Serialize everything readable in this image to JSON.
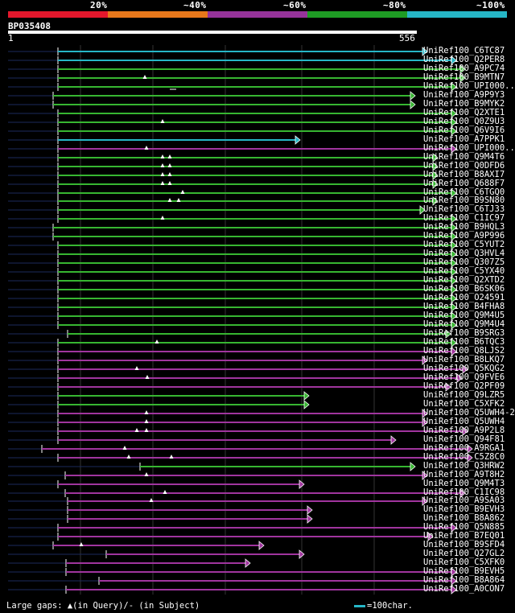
{
  "legend": {
    "segments": [
      {
        "label": "20%",
        "color": "#e3172c"
      },
      {
        "label": "~40%",
        "color": "#e8781b"
      },
      {
        "label": "~60%",
        "color": "#96339a"
      },
      {
        "label": "~80%",
        "color": "#1e9c24"
      },
      {
        "label": "~100%",
        "color": "#26b6c6"
      }
    ]
  },
  "query": {
    "id": "BP035408",
    "start_label": "1",
    "end_label": "556",
    "length": 556
  },
  "colors": {
    "cyan": "#26b6c6",
    "green": "#37b631",
    "purple": "#a0359e",
    "navy": "#1c2a5c",
    "grid": "#333333"
  },
  "hits": [
    {
      "label": "UniRef100_C6TC87",
      "c": "cyan",
      "qs": 72,
      "qe": 531,
      "ps": 10,
      "pe": 72
    },
    {
      "label": "UniRef100_Q2PER8",
      "c": "cyan",
      "qs": 72,
      "qe": 567,
      "ps": 10,
      "pe": 72
    },
    {
      "label": "UniRef100_A9PC74",
      "c": "green",
      "qs": 72,
      "qe": 578,
      "ps": 10,
      "pe": 72
    },
    {
      "label": "UniRef100_B9MTN7",
      "c": "green",
      "qs": 72,
      "qe": 578,
      "ps": 10,
      "pe": 72,
      "gq": [
        180
      ]
    },
    {
      "label": "UniRef100_UPI000..",
      "c": "green",
      "qs": 72,
      "qe": 567,
      "ps": 10,
      "pe": 72,
      "gs": [
        215
      ]
    },
    {
      "label": "UniRef100_A9P9Y3",
      "c": "green",
      "qs": 66,
      "qe": 516,
      "ps": 10,
      "pe": 66
    },
    {
      "label": "UniRef100_B9MYK2",
      "c": "green",
      "qs": 66,
      "qe": 516,
      "ps": 10,
      "pe": 66
    },
    {
      "label": "UniRef100_Q2XTE1",
      "c": "green",
      "qs": 72,
      "qe": 567,
      "ps": 10,
      "pe": 72
    },
    {
      "label": "UniRef100_Q0Z9U3",
      "c": "green",
      "qs": 72,
      "qe": 567,
      "ps": 10,
      "pe": 72,
      "gq": [
        202
      ]
    },
    {
      "label": "UniRef100_Q6V9I6",
      "c": "green",
      "qs": 72,
      "qe": 567,
      "ps": 10,
      "pe": 72
    },
    {
      "label": "UniRef100_A7PPK1",
      "c": "cyan",
      "qs": 72,
      "qe": 373,
      "ps": 10,
      "pe": 72
    },
    {
      "label": "UniRef100_UPI000..",
      "c": "purple",
      "qs": 72,
      "qe": 567,
      "ps": 10,
      "pe": 72,
      "gq": [
        182
      ]
    },
    {
      "label": "UniRef100_Q9M4T6",
      "c": "green",
      "qs": 72,
      "qe": 544,
      "ps": 10,
      "pe": 72,
      "gq": [
        202,
        211
      ]
    },
    {
      "label": "UniRef100_Q0DFD6",
      "c": "green",
      "qs": 72,
      "qe": 544,
      "ps": 10,
      "pe": 72,
      "gq": [
        202,
        211
      ]
    },
    {
      "label": "UniRef100_B8AXI7",
      "c": "green",
      "qs": 72,
      "qe": 544,
      "ps": 10,
      "pe": 72,
      "gq": [
        202,
        211
      ]
    },
    {
      "label": "UniRef100_Q688F7",
      "c": "green",
      "qs": 72,
      "qe": 544,
      "ps": 10,
      "pe": 72,
      "gq": [
        202,
        211
      ]
    },
    {
      "label": "UniRef100_C6TGQ0",
      "c": "green",
      "qs": 72,
      "qe": 567,
      "ps": 10,
      "pe": 72,
      "gq": [
        227
      ]
    },
    {
      "label": "UniRef100_B9SN80",
      "c": "green",
      "qs": 72,
      "qe": 544,
      "ps": 10,
      "pe": 72,
      "gq": [
        211,
        222
      ]
    },
    {
      "label": "UniRef100_C6TJ33",
      "c": "green",
      "qs": 72,
      "qe": 528,
      "ps": 10,
      "pe": 72
    },
    {
      "label": "UniRef100_C1IC97",
      "c": "green",
      "qs": 72,
      "qe": 567,
      "ps": 10,
      "pe": 72,
      "gq": [
        202
      ]
    },
    {
      "label": "UniRef100_B9HQL3",
      "c": "green",
      "qs": 66,
      "qe": 567,
      "ps": 10,
      "pe": 66
    },
    {
      "label": "UniRef100_A9P996",
      "c": "green",
      "qs": 66,
      "qe": 567,
      "ps": 10,
      "pe": 66
    },
    {
      "label": "UniRef100_C5YUT2",
      "c": "green",
      "qs": 72,
      "qe": 567,
      "ps": 10,
      "pe": 72
    },
    {
      "label": "UniRef100_Q3HVL4",
      "c": "green",
      "qs": 72,
      "qe": 567,
      "ps": 10,
      "pe": 72
    },
    {
      "label": "UniRef100_Q307Z5",
      "c": "green",
      "qs": 72,
      "qe": 567,
      "ps": 10,
      "pe": 72
    },
    {
      "label": "UniRef100_C5YX40",
      "c": "green",
      "qs": 72,
      "qe": 567,
      "ps": 10,
      "pe": 72
    },
    {
      "label": "UniRef100_Q2XTD2",
      "c": "green",
      "qs": 72,
      "qe": 567,
      "ps": 10,
      "pe": 72
    },
    {
      "label": "UniRef100_B6SK06",
      "c": "green",
      "qs": 72,
      "qe": 567,
      "ps": 10,
      "pe": 72
    },
    {
      "label": "UniRef100_O24591",
      "c": "green",
      "qs": 72,
      "qe": 567,
      "ps": 10,
      "pe": 72
    },
    {
      "label": "UniRef100_B4FHA8",
      "c": "green",
      "qs": 72,
      "qe": 567,
      "ps": 10,
      "pe": 72
    },
    {
      "label": "UniRef100_Q9M4U5",
      "c": "green",
      "qs": 72,
      "qe": 567,
      "ps": 10,
      "pe": 72
    },
    {
      "label": "UniRef100_Q9M4U4",
      "c": "green",
      "qs": 72,
      "qe": 567,
      "ps": 10,
      "pe": 72
    },
    {
      "label": "UniRef100_B9SRG3",
      "c": "green",
      "qs": 84,
      "qe": 560,
      "ps": 10,
      "pe": 84
    },
    {
      "label": "UniRef100_B6TQC3",
      "c": "green",
      "qs": 72,
      "qe": 567,
      "ps": 10,
      "pe": 72,
      "gq": [
        195
      ]
    },
    {
      "label": "UniRef100_Q8LJS2",
      "c": "purple",
      "qs": 72,
      "qe": 567,
      "ps": 10,
      "pe": 72
    },
    {
      "label": "UniRef100_B8LKQ7",
      "c": "purple",
      "qs": 72,
      "qe": 531,
      "ps": 10,
      "pe": 72
    },
    {
      "label": "UniRef100_Q5KQG2",
      "c": "purple",
      "qs": 72,
      "qe": 581,
      "ps": 10,
      "pe": 72,
      "gq": [
        170
      ]
    },
    {
      "label": "UniRef100_Q9FVE6",
      "c": "purple",
      "qs": 72,
      "qe": 574,
      "ps": 10,
      "pe": 72,
      "gq": [
        183
      ]
    },
    {
      "label": "UniRef100_Q2PF09",
      "c": "purple",
      "qs": 72,
      "qe": 560,
      "ps": 10,
      "pe": 72
    },
    {
      "label": "UniRef100_Q9LZR5",
      "c": "green",
      "qs": 72,
      "qe": 384,
      "ps": 10,
      "pe": 72
    },
    {
      "label": "UniRef100_C5XFK2",
      "c": "green",
      "qs": 72,
      "qe": 384,
      "ps": 10,
      "pe": 72
    },
    {
      "label": "UniRef100_Q5UWH4-2",
      "c": "purple",
      "qs": 72,
      "qe": 531,
      "ps": 10,
      "pe": 72,
      "gq": [
        182
      ]
    },
    {
      "label": "UniRef100_Q5UWH4",
      "c": "purple",
      "qs": 72,
      "qe": 531,
      "ps": 10,
      "pe": 72,
      "gq": [
        182
      ]
    },
    {
      "label": "UniRef100_A9P2L8",
      "c": "purple",
      "qs": 72,
      "qe": 581,
      "ps": 10,
      "pe": 72,
      "gq": [
        170,
        182
      ]
    },
    {
      "label": "UniRef100_Q94F81",
      "c": "purple",
      "qs": 72,
      "qe": 492,
      "ps": 10,
      "pe": 72
    },
    {
      "label": "UniRef100_A9RGA1",
      "c": "purple",
      "qs": 52,
      "qe": 587,
      "ps": 10,
      "pe": 52,
      "gq": [
        155
      ]
    },
    {
      "label": "UniRef100_C5Z8C0",
      "c": "purple",
      "qs": 72,
      "qe": 587,
      "ps": 10,
      "pe": 72,
      "gq": [
        160,
        213
      ]
    },
    {
      "label": "UniRef100_Q3HRW2",
      "c": "green",
      "qs": 174,
      "qe": 516,
      "ps": 10,
      "pe": 174
    },
    {
      "label": "UniRef100_A9T8H2",
      "c": "purple",
      "qs": 81,
      "qe": 531,
      "ps": 10,
      "pe": 81,
      "gq": [
        182
      ]
    },
    {
      "label": "UniRef100_Q9M4T3",
      "c": "purple",
      "qs": 72,
      "qe": 378,
      "ps": 10,
      "pe": 72
    },
    {
      "label": "UniRef100_C1IC98",
      "c": "purple",
      "qs": 81,
      "qe": 578,
      "ps": 10,
      "pe": 81,
      "gq": [
        205
      ]
    },
    {
      "label": "UniRef100_A9SA03",
      "c": "purple",
      "qs": 84,
      "qe": 531,
      "ps": 10,
      "pe": 84,
      "gq": [
        188
      ]
    },
    {
      "label": "UniRef100_B9EVH3",
      "c": "purple",
      "qs": 84,
      "qe": 388,
      "ps": 10,
      "pe": 84
    },
    {
      "label": "UniRef100_B8A862",
      "c": "purple",
      "qs": 84,
      "qe": 388,
      "ps": 10,
      "pe": 84
    },
    {
      "label": "UniRef100_Q5N885",
      "c": "purple",
      "qs": 72,
      "qe": 567,
      "ps": 10,
      "pe": 72
    },
    {
      "label": "UniRef100_B7EQ01",
      "c": "purple",
      "qs": 72,
      "qe": 538,
      "ps": 10,
      "pe": 72
    },
    {
      "label": "UniRef100_B9SFD4",
      "c": "purple",
      "qs": 66,
      "qe": 328,
      "ps": 10,
      "pe": 66,
      "gq": [
        101
      ]
    },
    {
      "label": "UniRef100_Q27GL2",
      "c": "purple",
      "qs": 132,
      "qe": 378,
      "ps": 10,
      "pe": 132
    },
    {
      "label": "UniRef100_C5XFK0",
      "c": "purple",
      "qs": 82,
      "qe": 311,
      "ps": 10,
      "pe": 82
    },
    {
      "label": "UniRef100_B9EVH5",
      "c": "purple",
      "qs": 82,
      "qe": 567,
      "ps": 10,
      "pe": 82
    },
    {
      "label": "UniRef100_B8A864",
      "c": "purple",
      "qs": 123,
      "qe": 567,
      "ps": 10,
      "pe": 123
    },
    {
      "label": "UniRef100_A0CON7",
      "c": "purple",
      "qs": 82,
      "qe": 567,
      "ps": 10,
      "pe": 82
    }
  ],
  "footer": {
    "gaps_prefix": "Large gaps: ",
    "gaps_q": "▲(in Query)/",
    "gaps_s": "- (in Subject)",
    "scale": "=100char."
  }
}
